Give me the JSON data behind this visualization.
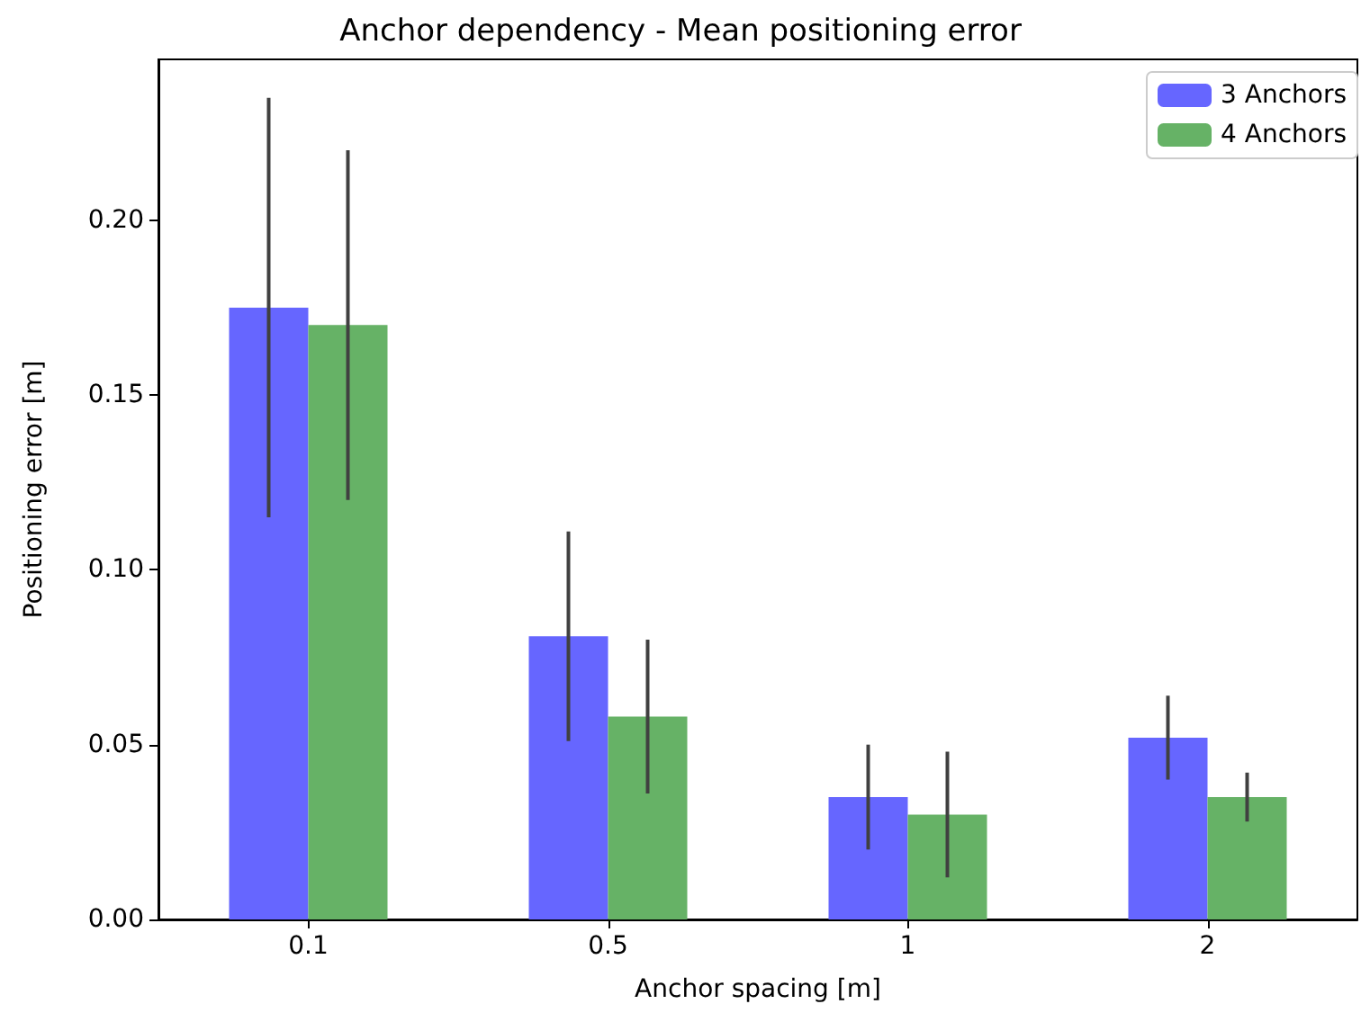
{
  "chart_data": {
    "type": "bar",
    "title": "Anchor dependency - Mean positioning error",
    "xlabel": "Anchor spacing [m]",
    "ylabel": "Positioning error [m]",
    "categories": [
      "0.1",
      "0.5",
      "1",
      "2"
    ],
    "series": [
      {
        "name": "3 Anchors",
        "color": "#6666ff",
        "values": [
          0.175,
          0.081,
          0.035,
          0.052
        ],
        "errors": [
          0.06,
          0.03,
          0.015,
          0.012
        ]
      },
      {
        "name": "4 Anchors",
        "color": "#66b266",
        "values": [
          0.17,
          0.058,
          0.03,
          0.035
        ],
        "errors": [
          0.05,
          0.022,
          0.018,
          0.007
        ]
      }
    ],
    "ylim": [
      0,
      0.246
    ],
    "yticks": [
      {
        "value": 0,
        "label": "0.00"
      },
      {
        "value": 0.05,
        "label": "0.05"
      },
      {
        "value": 0.1,
        "label": "0.10"
      },
      {
        "value": 0.15,
        "label": "0.15"
      },
      {
        "value": 0.2,
        "label": "0.20"
      }
    ],
    "grid": false,
    "legend": "top right"
  }
}
